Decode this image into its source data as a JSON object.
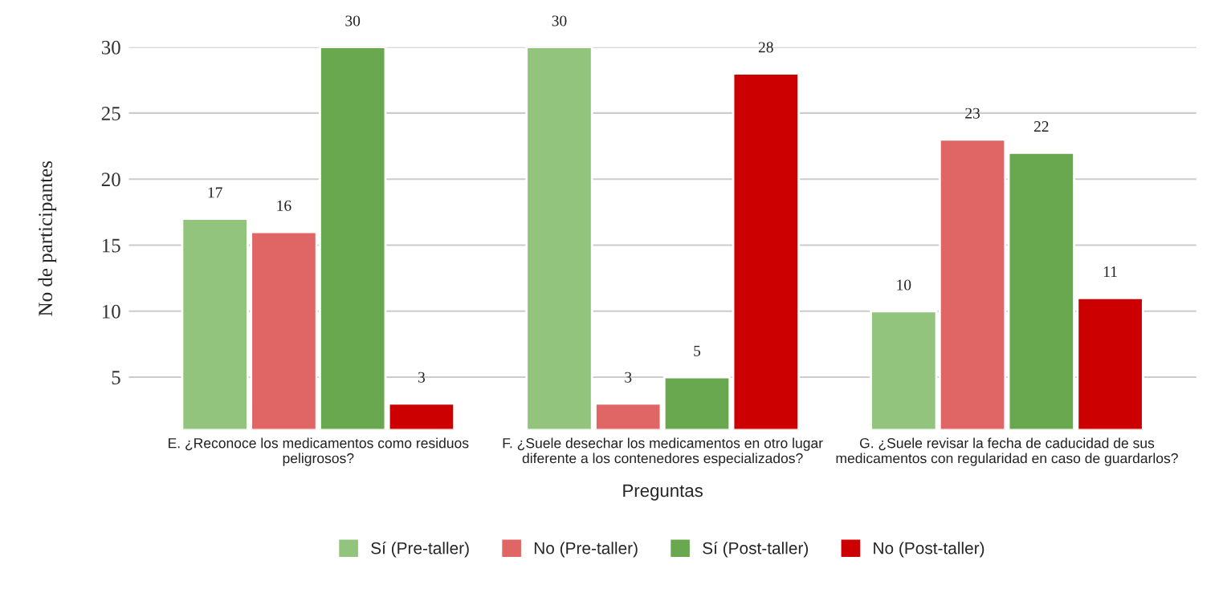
{
  "chart_data": {
    "type": "bar",
    "xlabel": "Preguntas",
    "ylabel": "No de participantes",
    "categories": [
      "E. ¿Reconoce los medicamentos como residuos\npeligrosos?",
      "F. ¿Suele desechar los medicamentos en otro lugar\ndiferente a los contenedores especializados?",
      "G. ¿Suele revisar la fecha de caducidad de sus\nmedicamentos con regularidad en caso de guardarlos?"
    ],
    "series": [
      {
        "name": "Sí (Pre-taller)",
        "color": "#93c47d",
        "values": [
          17,
          30,
          10
        ]
      },
      {
        "name": "No (Pre-taller)",
        "color": "#e06666",
        "values": [
          16,
          3,
          23
        ]
      },
      {
        "name": "Sí (Post-taller)",
        "color": "#6aa84f",
        "values": [
          30,
          5,
          22
        ]
      },
      {
        "name": "No (Post-taller)",
        "color": "#cc0000",
        "values": [
          3,
          28,
          11
        ]
      }
    ],
    "ylim": [
      1,
      30
    ],
    "yticks": [
      5,
      10,
      15,
      20,
      25,
      30
    ],
    "grid": "y",
    "legend": "bottom",
    "data_labels": true
  }
}
